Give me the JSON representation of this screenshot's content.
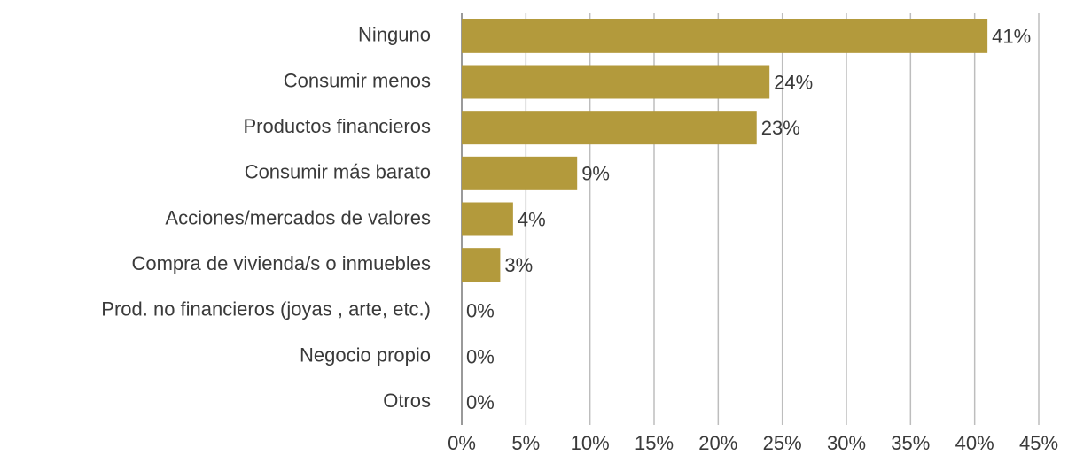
{
  "chart_data": {
    "type": "bar",
    "orientation": "horizontal",
    "categories": [
      "Ninguno",
      "Consumir menos",
      "Productos financieros",
      "Consumir más barato",
      "Acciones/mercados de valores",
      "Compra de vivienda/s o inmuebles",
      "Prod. no financieros (joyas , arte, etc.)",
      "Negocio propio",
      "Otros"
    ],
    "values": [
      41,
      24,
      23,
      9,
      4,
      3,
      0,
      0,
      0
    ],
    "value_labels": [
      "41%",
      "24%",
      "23%",
      "9%",
      "4%",
      "3%",
      "0%",
      "0%",
      "0%"
    ],
    "color": "#b39a3c",
    "xlim": [
      0,
      45
    ],
    "xticks": [
      {
        "value": 0,
        "label": "0%"
      },
      {
        "value": 5,
        "label": "5%"
      },
      {
        "value": 10,
        "label": "10%"
      },
      {
        "value": 15,
        "label": "15%"
      },
      {
        "value": 20,
        "label": "20%"
      },
      {
        "value": 25,
        "label": "25%"
      },
      {
        "value": 30,
        "label": "30%"
      },
      {
        "value": 35,
        "label": "35%"
      },
      {
        "value": 40,
        "label": "40%"
      },
      {
        "value": 45,
        "label": "45%"
      }
    ],
    "grid": true
  }
}
